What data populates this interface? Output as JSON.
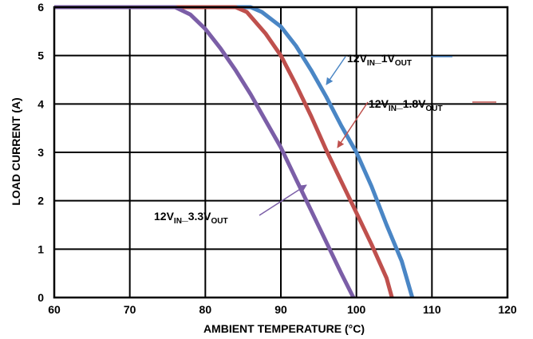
{
  "chart_data": {
    "type": "line",
    "title": "",
    "xlabel": "AMBIENT TEMPERATURE (°C)",
    "ylabel": "LOAD CURRENT (A)",
    "xlim": [
      60,
      120
    ],
    "ylim": [
      0,
      6
    ],
    "xticks": [
      60,
      70,
      80,
      90,
      100,
      110,
      120
    ],
    "yticks": [
      0,
      1,
      2,
      3,
      4,
      5,
      6
    ],
    "grid": true,
    "legend": "none (inline annotations with arrows)",
    "series": [
      {
        "color": "#4a86c5",
        "annotation": {
          "prefix": "12V",
          "sub1": "IN",
          "mid": "_1V",
          "sub2": "OUT"
        },
        "points": [
          [
            60,
            6
          ],
          [
            86,
            6
          ],
          [
            87.5,
            5.9
          ],
          [
            90,
            5.6
          ],
          [
            92,
            5.2
          ],
          [
            94,
            4.7
          ],
          [
            96,
            4.15
          ],
          [
            98,
            3.55
          ],
          [
            100,
            3.0
          ],
          [
            102,
            2.3
          ],
          [
            104,
            1.5
          ],
          [
            106,
            0.75
          ],
          [
            107.4,
            0
          ]
        ]
      },
      {
        "color": "#bf504d",
        "annotation": {
          "prefix": "12V",
          "sub1": "IN",
          "mid": "_1.8V",
          "sub2": "OUT"
        },
        "points": [
          [
            60,
            6
          ],
          [
            84,
            6
          ],
          [
            85.5,
            5.9
          ],
          [
            88,
            5.45
          ],
          [
            90,
            5.0
          ],
          [
            92,
            4.4
          ],
          [
            94,
            3.75
          ],
          [
            96,
            3.05
          ],
          [
            98,
            2.4
          ],
          [
            100,
            1.75
          ],
          [
            102,
            1.1
          ],
          [
            104,
            0.4
          ],
          [
            104.7,
            0
          ]
        ]
      },
      {
        "color": "#7b5ea7",
        "annotation": {
          "prefix": "12V",
          "sub1": "IN",
          "mid": "_3.3V",
          "sub2": "OUT"
        },
        "points": [
          [
            60,
            6
          ],
          [
            76,
            6
          ],
          [
            78,
            5.85
          ],
          [
            80,
            5.55
          ],
          [
            82,
            5.15
          ],
          [
            84,
            4.7
          ],
          [
            86,
            4.2
          ],
          [
            88,
            3.65
          ],
          [
            90,
            3.1
          ],
          [
            92,
            2.45
          ],
          [
            94,
            1.8
          ],
          [
            96,
            1.15
          ],
          [
            98,
            0.5
          ],
          [
            99.6,
            0
          ]
        ]
      }
    ]
  }
}
